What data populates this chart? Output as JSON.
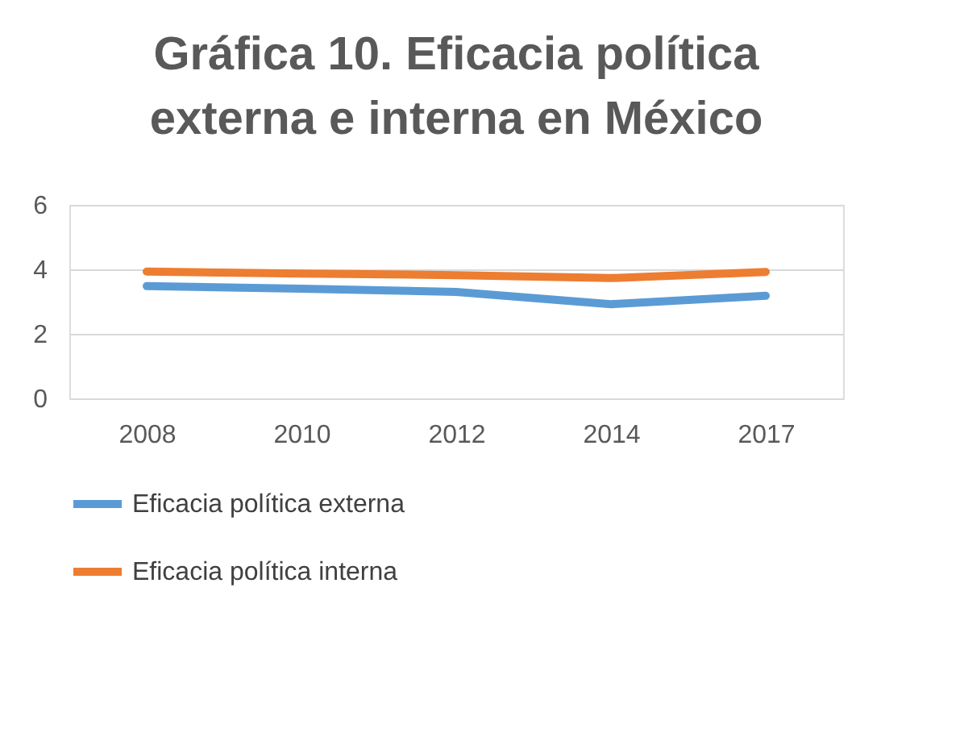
{
  "chart_data": {
    "type": "line",
    "title": "Gráfica 10. Eficacia política externa e interna en México",
    "categories": [
      "2008",
      "2010",
      "2012",
      "2014",
      "2017"
    ],
    "series": [
      {
        "name": "Eficacia política externa",
        "color": "#5b9bd5",
        "values": [
          3.48,
          3.4,
          3.3,
          2.92,
          3.18
        ]
      },
      {
        "name": "Eficacia política interna",
        "color": "#ed7d31",
        "values": [
          3.93,
          3.87,
          3.82,
          3.73,
          3.92
        ]
      }
    ],
    "ylim": [
      0,
      6
    ],
    "yticks": [
      0,
      2,
      4,
      6
    ],
    "grid": "y",
    "legend": "bottom",
    "line_style": "solid",
    "marker": "none"
  }
}
